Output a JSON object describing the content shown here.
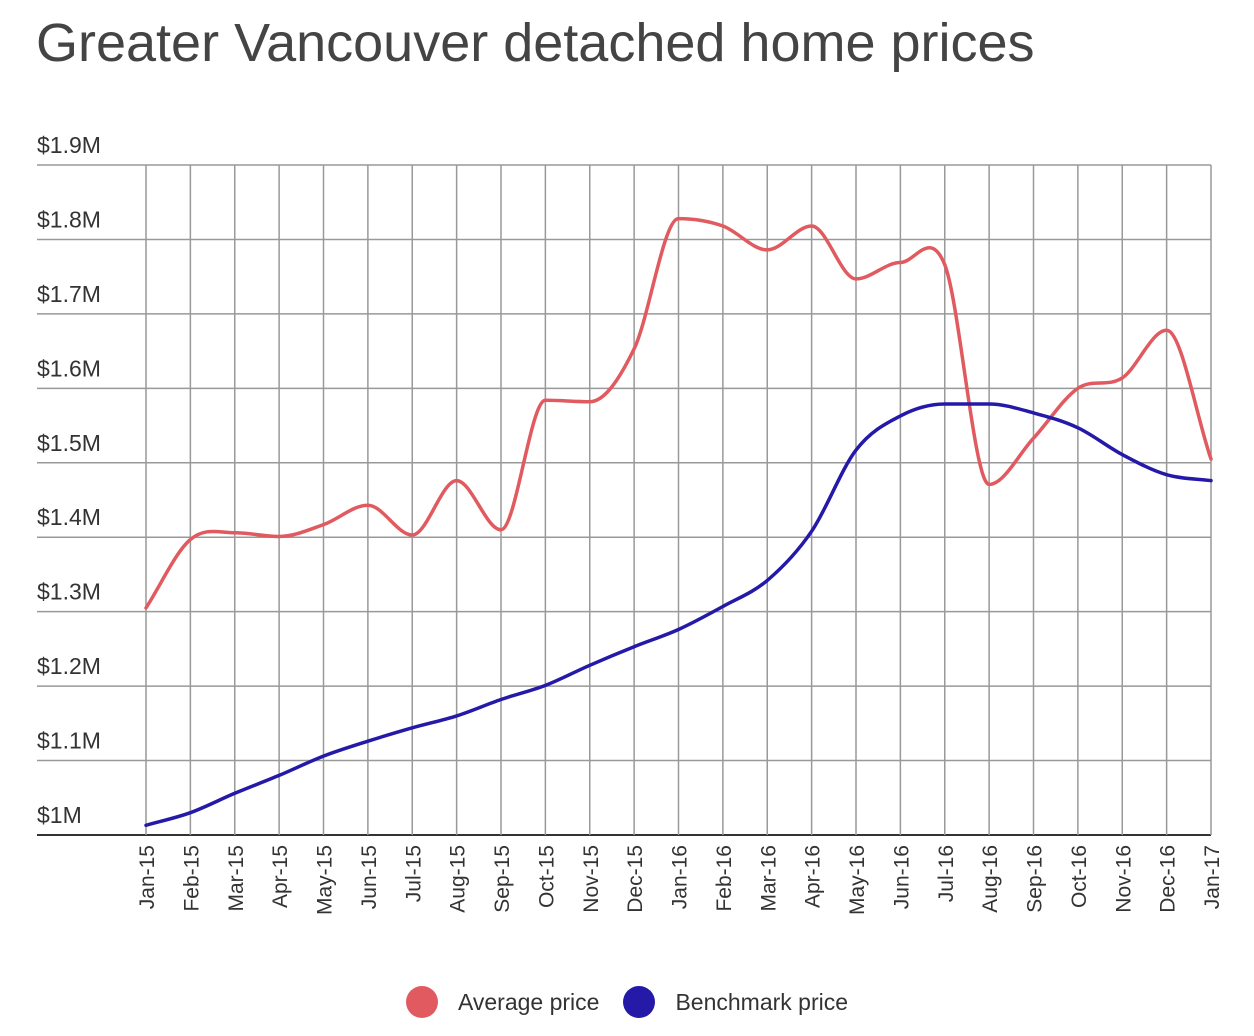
{
  "chart_data": {
    "type": "line",
    "title": "Greater Vancouver detached home prices",
    "xlabel": "",
    "ylabel": "",
    "ylim": [
      1000000,
      1900000
    ],
    "y_ticks": [
      {
        "value": 1000000,
        "label": "$1M"
      },
      {
        "value": 1100000,
        "label": "$1.1M"
      },
      {
        "value": 1200000,
        "label": "$1.2M"
      },
      {
        "value": 1300000,
        "label": "$1.3M"
      },
      {
        "value": 1400000,
        "label": "$1.4M"
      },
      {
        "value": 1500000,
        "label": "$1.5M"
      },
      {
        "value": 1600000,
        "label": "$1.6M"
      },
      {
        "value": 1700000,
        "label": "$1.7M"
      },
      {
        "value": 1800000,
        "label": "$1.8M"
      },
      {
        "value": 1900000,
        "label": "$1.9M"
      }
    ],
    "categories": [
      "Jan-15",
      "Feb-15",
      "Mar-15",
      "Apr-15",
      "May-15",
      "Jun-15",
      "Jul-15",
      "Aug-15",
      "Sep-15",
      "Oct-15",
      "Nov-15",
      "Dec-15",
      "Jan-16",
      "Feb-16",
      "Mar-16",
      "Apr-16",
      "May-16",
      "Jun-16",
      "Jul-16",
      "Aug-16",
      "Sep-16",
      "Oct-16",
      "Nov-16",
      "Dec-16",
      "Jan-17"
    ],
    "series": [
      {
        "name": "Average price",
        "color": "#e05a5f",
        "values": [
          1305000,
          1397000,
          1406000,
          1401000,
          1417000,
          1443000,
          1403000,
          1476000,
          1410000,
          1584000,
          1582000,
          1653000,
          1828000,
          1818000,
          1786000,
          1818000,
          1747000,
          1769000,
          1766000,
          1471000,
          1533000,
          1600000,
          1614000,
          1678000,
          1505000
        ]
      },
      {
        "name": "Benchmark price",
        "color": "#2519a8",
        "values": [
          1013000,
          1030000,
          1056000,
          1080000,
          1106000,
          1126000,
          1144000,
          1160000,
          1182000,
          1201000,
          1228000,
          1253000,
          1276000,
          1307000,
          1342000,
          1408000,
          1517000,
          1563000,
          1579000,
          1579000,
          1567000,
          1547000,
          1511000,
          1484000,
          1476000
        ]
      }
    ],
    "grid": true,
    "legend_position": "bottom-center"
  }
}
